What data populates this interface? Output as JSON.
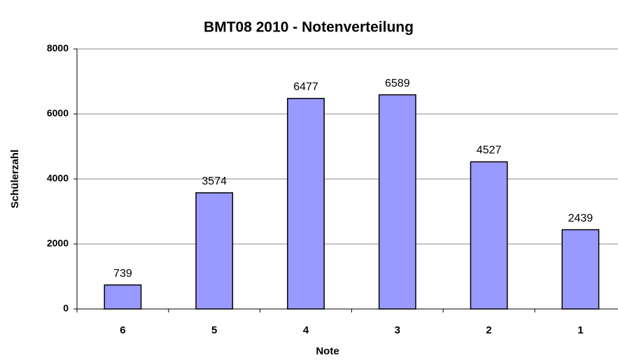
{
  "chart_data": {
    "type": "bar",
    "title": "BMT08 2010 - Notenverteilung",
    "x_label": "Note",
    "y_label": "Schülerzahl",
    "categories": [
      "6",
      "5",
      "4",
      "3",
      "2",
      "1"
    ],
    "values": [
      739,
      3574,
      6477,
      6589,
      4527,
      2439
    ],
    "color": "#9999ff",
    "ylim": [
      0,
      8000
    ],
    "yticks": [
      0,
      2000,
      4000,
      6000,
      8000
    ],
    "grid": true
  }
}
